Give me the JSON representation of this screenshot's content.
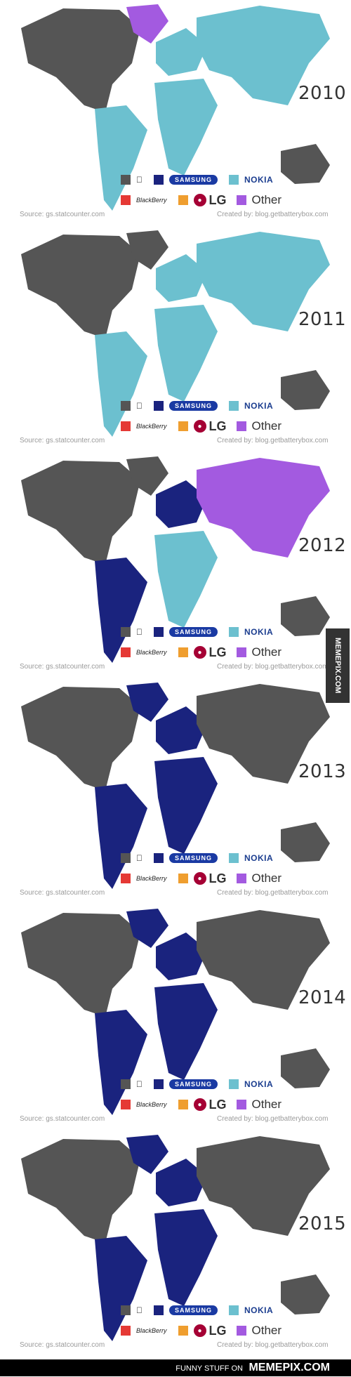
{
  "colors": {
    "apple": "#555555",
    "samsung": "#1a237e",
    "nokia": "#6cc0cf",
    "blackberry": "#e53935",
    "lg": "#ef9e2f",
    "other": "#a35ae0"
  },
  "legend": {
    "apple_icon": "apple-icon",
    "samsung_label": "SAMSUNG",
    "nokia_label": "NOKIA",
    "blackberry_label": "BlackBerry",
    "lg_label": "LG",
    "other_label": "Other"
  },
  "source_text": "Source: gs.statcounter.com",
  "created_text": "Created by: blog.getbatterybox.com",
  "side_tag": "MEMEPIX.COM",
  "footer": {
    "prefix": "FUNNY STUFF ON",
    "brand": "MEMEPIX.COM"
  },
  "panels": [
    {
      "year": "2010",
      "regions": {
        "north_america": "apple",
        "greenland": "other",
        "south_america": "nokia",
        "europe": "nokia",
        "africa": "nokia",
        "asia": "nokia",
        "australia": "apple"
      }
    },
    {
      "year": "2011",
      "regions": {
        "north_america": "apple",
        "greenland": "apple",
        "south_america": "nokia",
        "europe": "nokia",
        "africa": "nokia",
        "asia": "nokia",
        "australia": "apple"
      }
    },
    {
      "year": "2012",
      "regions": {
        "north_america": "apple",
        "greenland": "apple",
        "south_america": "samsung",
        "europe": "samsung",
        "africa": "nokia",
        "asia": "other",
        "australia": "apple"
      }
    },
    {
      "year": "2013",
      "regions": {
        "north_america": "apple",
        "greenland": "samsung",
        "south_america": "samsung",
        "europe": "samsung",
        "africa": "samsung",
        "asia": "apple",
        "australia": "apple"
      }
    },
    {
      "year": "2014",
      "regions": {
        "north_america": "apple",
        "greenland": "samsung",
        "south_america": "samsung",
        "europe": "samsung",
        "africa": "samsung",
        "asia": "apple",
        "australia": "apple"
      }
    },
    {
      "year": "2015",
      "regions": {
        "north_america": "apple",
        "greenland": "samsung",
        "south_america": "samsung",
        "europe": "samsung",
        "africa": "samsung",
        "asia": "apple",
        "australia": "apple"
      }
    }
  ]
}
